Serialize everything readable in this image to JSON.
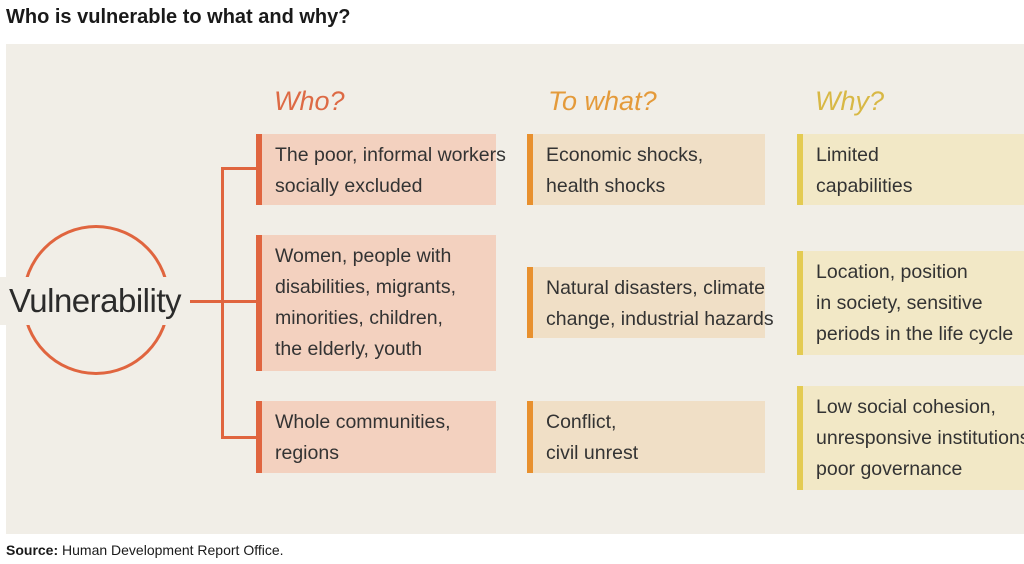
{
  "title": "Who is vulnerable to what and why?",
  "center": {
    "label": "Vulnerability"
  },
  "headers": {
    "who": "Who?",
    "to_what": "To what?",
    "why": "Why?"
  },
  "who": [
    {
      "lines": [
        "The poor, informal workers",
        "socially excluded"
      ]
    },
    {
      "lines": [
        "Women, people with",
        "disabilities, migrants,",
        "minorities, children,",
        "the elderly, youth"
      ]
    },
    {
      "lines": [
        "Whole communities,",
        "regions"
      ]
    }
  ],
  "to_what": [
    {
      "lines": [
        "Economic shocks,",
        "health shocks"
      ]
    },
    {
      "lines": [
        "Natural disasters, climate",
        "change, industrial hazards"
      ]
    },
    {
      "lines": [
        "Conflict,",
        "civil unrest"
      ]
    }
  ],
  "why": [
    {
      "lines": [
        "Limited",
        "capabilities"
      ]
    },
    {
      "lines": [
        "Location, position",
        "in society, sensitive",
        "periods in the life cycle"
      ]
    },
    {
      "lines": [
        "Low social cohesion,",
        "unresponsive institutions,",
        "poor governance"
      ]
    }
  ],
  "source": {
    "label": "Source:",
    "text": "Human Development Report Office."
  },
  "colors": {
    "who_accent": "#e0653f",
    "to_what_accent": "#e8902e",
    "why_accent": "#e4cb52",
    "panel_background": "#f1eee7"
  }
}
